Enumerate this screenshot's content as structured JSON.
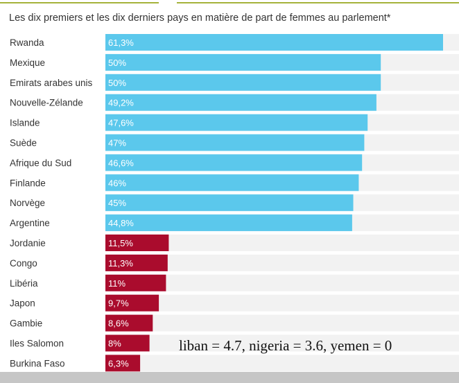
{
  "title": "Les dix premiers et les dix derniers pays en matière de part de femmes au parlement*",
  "annotation": "liban = 4.7, nigeria = 3.6, yemen = 0",
  "colors": {
    "top": "#5bc8ec",
    "bottom": "#aa0c2d",
    "track": "#f2f2f2",
    "rule": "#a5b23a"
  },
  "chart_data": {
    "type": "bar",
    "orientation": "horizontal",
    "title": "Les dix premiers et les dix derniers pays en matière de part de femmes au parlement*",
    "xlim": [
      0,
      61.3
    ],
    "categories": [
      "Rwanda",
      "Mexique",
      "Emirats arabes unis",
      "Nouvelle-Zélande",
      "Islande",
      "Suède",
      "Afrique du Sud",
      "Finlande",
      "Norvège",
      "Argentine",
      "Jordanie",
      "Congo",
      "Libéria",
      "Japon",
      "Gambie",
      "Iles Salomon",
      "Burkina Faso"
    ],
    "values": [
      61.3,
      50,
      50,
      49.2,
      47.6,
      47,
      46.6,
      46,
      45,
      44.8,
      11.5,
      11.3,
      11,
      9.7,
      8.6,
      8,
      6.3
    ],
    "labels": [
      "61,3%",
      "50%",
      "50%",
      "49,2%",
      "47,6%",
      "47%",
      "46,6%",
      "46%",
      "45%",
      "44,8%",
      "11,5%",
      "11,3%",
      "11%",
      "9,7%",
      "8,6%",
      "8%",
      "6,3%"
    ],
    "groups": [
      "top",
      "top",
      "top",
      "top",
      "top",
      "top",
      "top",
      "top",
      "top",
      "top",
      "bottom",
      "bottom",
      "bottom",
      "bottom",
      "bottom",
      "bottom",
      "bottom"
    ]
  }
}
